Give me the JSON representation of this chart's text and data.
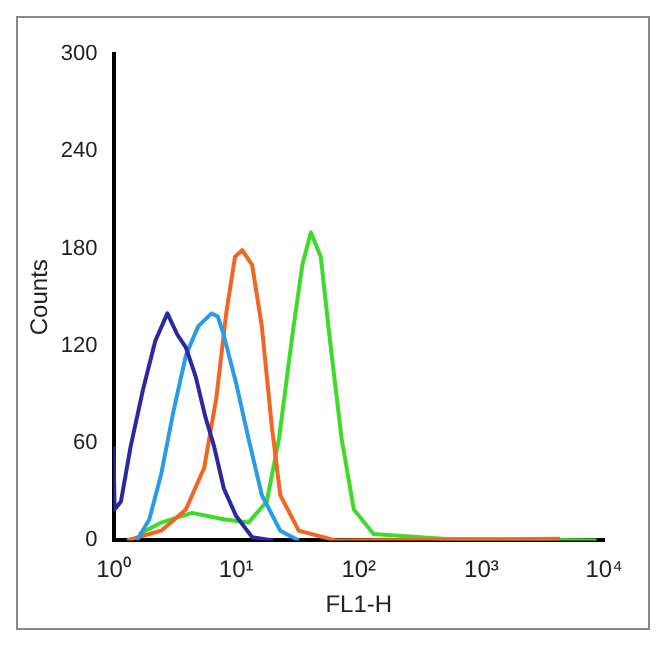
{
  "chart_data": {
    "type": "line",
    "xlabel": "FL1-H",
    "ylabel": "Counts",
    "log": "x",
    "grid": false,
    "legend": false,
    "marker": "none",
    "line_style": "solid",
    "xlim": [
      1,
      10000
    ],
    "xticks": [
      {
        "value": 1,
        "label": "10⁰"
      },
      {
        "value": 10,
        "label": "10¹"
      },
      {
        "value": 100,
        "label": "10²"
      },
      {
        "value": 1000,
        "label": "10³"
      },
      {
        "value": 10000,
        "label": "10⁴"
      }
    ],
    "ylim": [
      0,
      300
    ],
    "yticks": [
      0,
      60,
      120,
      180,
      240,
      300
    ],
    "series": [
      {
        "color": "#2a2aa0",
        "x": [
          1,
          1.02,
          1.15,
          1.38,
          1.74,
          2.19,
          2.75,
          3.31,
          3.89,
          4.68,
          5.62,
          6.61,
          7.94,
          10,
          13.5,
          20
        ],
        "values": [
          58,
          19,
          24,
          58,
          93,
          123,
          140,
          127,
          119,
          101,
          76,
          58,
          32,
          15,
          2,
          0
        ]
      },
      {
        "color": "#2a9be8",
        "x": [
          1.55,
          1.96,
          2.45,
          3.09,
          3.89,
          4.9,
          6.3,
          7.1,
          7.9,
          10,
          12.6,
          16.2,
          22.9,
          32.4
        ],
        "values": [
          0,
          13,
          41,
          80,
          114,
          132,
          140,
          138,
          127,
          97,
          63,
          28,
          6,
          0
        ]
      },
      {
        "color": "#f26522",
        "x": [
          1.29,
          2.45,
          3.89,
          5.5,
          6.9,
          8.3,
          9.8,
          11.2,
          13.5,
          16.2,
          19.5,
          22.9,
          32.4,
          64.6,
          4365
        ],
        "values": [
          0,
          6,
          19,
          45,
          88,
          140,
          175,
          179,
          170,
          132,
          71,
          28,
          6,
          0,
          1
        ]
      },
      {
        "color": "#3ddc2a",
        "x": [
          1.62,
          2.45,
          4.37,
          7.9,
          12.6,
          17.8,
          22.4,
          28.8,
          34.7,
          40.7,
          49,
          57.5,
          72.4,
          91.2,
          132,
          479,
          8710
        ],
        "values": [
          4,
          11,
          17,
          13,
          11,
          24,
          63,
          127,
          170,
          190,
          175,
          127,
          63,
          19,
          4,
          1,
          0
        ]
      }
    ]
  }
}
